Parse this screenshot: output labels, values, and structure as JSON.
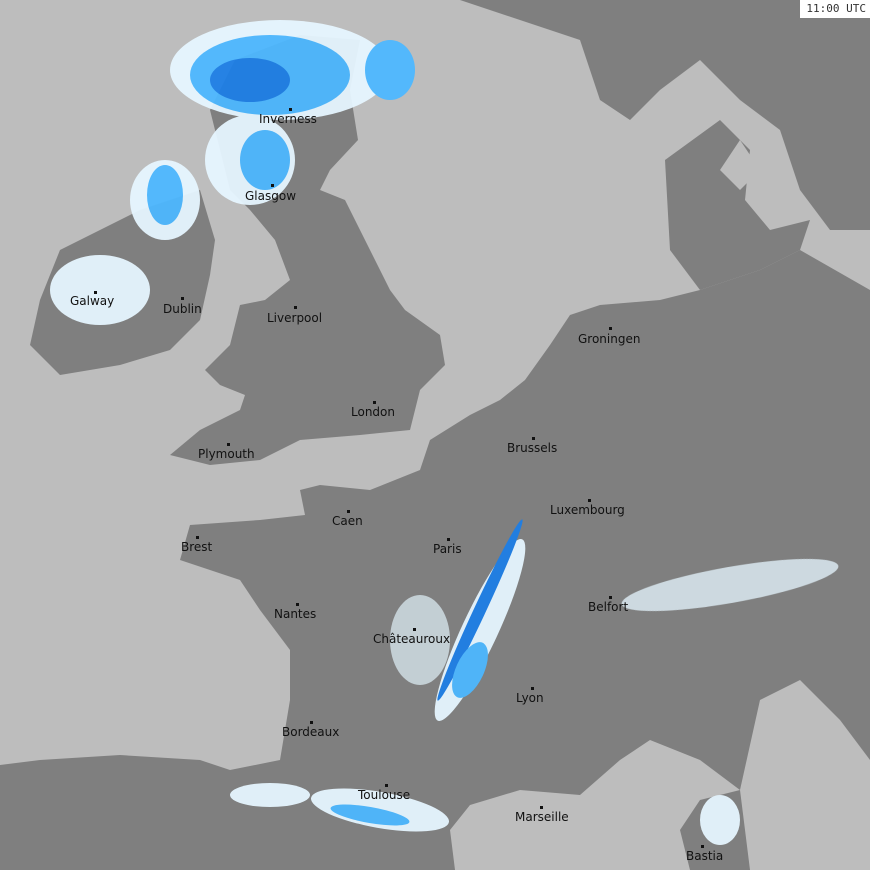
{
  "timestamp": "11:00 UTC",
  "colors": {
    "sea": "#bdbdbd",
    "land": "#7f7f7f",
    "rain_light": "#e6f6ff",
    "rain_moderate": "#4db8ff",
    "rain_heavy": "#1e7fe6"
  },
  "cities": [
    {
      "name": "Inverness"
    },
    {
      "name": "Glasgow"
    },
    {
      "name": "Galway"
    },
    {
      "name": "Dublin"
    },
    {
      "name": "Liverpool"
    },
    {
      "name": "London"
    },
    {
      "name": "Plymouth"
    },
    {
      "name": "Groningen"
    },
    {
      "name": "Brussels"
    },
    {
      "name": "Luxembourg"
    },
    {
      "name": "Caen"
    },
    {
      "name": "Paris"
    },
    {
      "name": "Brest"
    },
    {
      "name": "Nantes"
    },
    {
      "name": "Châteauroux"
    },
    {
      "name": "Belfort"
    },
    {
      "name": "Lyon"
    },
    {
      "name": "Bordeaux"
    },
    {
      "name": "Toulouse"
    },
    {
      "name": "Marseille"
    },
    {
      "name": "Bastia"
    }
  ]
}
